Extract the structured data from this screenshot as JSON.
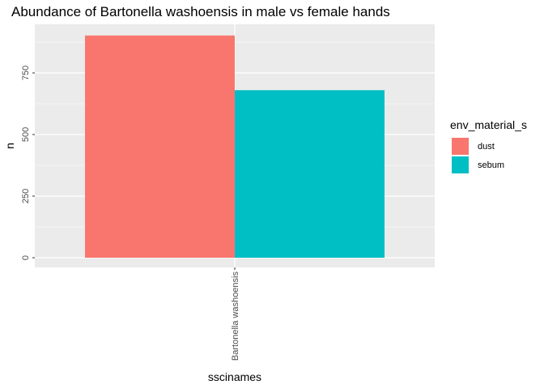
{
  "chart_data": {
    "type": "bar",
    "title": "Abundance of Bartonella washoensis in male vs female hands",
    "xlabel": "sscinames",
    "ylabel": "n",
    "categories": [
      "Bartonella washoensis"
    ],
    "series": [
      {
        "name": "dust",
        "color": "#F8766D",
        "values": [
          902
        ]
      },
      {
        "name": "sebum",
        "color": "#00BFC4",
        "values": [
          680
        ]
      }
    ],
    "ylim": [
      0,
      950
    ],
    "yticks": [
      0,
      250,
      500,
      750
    ],
    "ytick_labels": [
      "0",
      "250",
      "500",
      "750"
    ],
    "grid": true,
    "legend": {
      "title": "env_material_s",
      "placement": "right",
      "items": [
        "dust",
        "sebum"
      ]
    },
    "panel_background": "#EBEBEB",
    "grid_color": "#FFFFFF"
  }
}
